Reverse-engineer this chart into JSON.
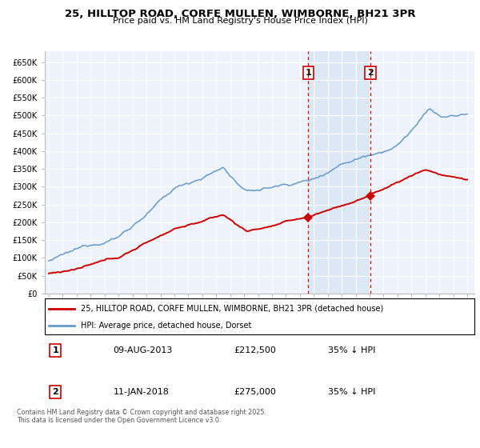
{
  "title": "25, HILLTOP ROAD, CORFE MULLEN, WIMBORNE, BH21 3PR",
  "subtitle": "Price paid vs. HM Land Registry's House Price Index (HPI)",
  "legend_label_red": "25, HILLTOP ROAD, CORFE MULLEN, WIMBORNE, BH21 3PR (detached house)",
  "legend_label_blue": "HPI: Average price, detached house, Dorset",
  "footnote": "Contains HM Land Registry data © Crown copyright and database right 2025.\nThis data is licensed under the Open Government Licence v3.0.",
  "red_color": "#cc0000",
  "blue_color": "#6699cc",
  "shade_color": "#dce8f5",
  "background_color": "#eef3fb",
  "ylim": [
    0,
    680000
  ],
  "xlim_start": 1994.7,
  "xlim_end": 2025.5,
  "transaction1": {
    "year": 2013.6,
    "price": 212500,
    "label": "1",
    "date": "09-AUG-2013",
    "note": "35% ↓ HPI"
  },
  "transaction2": {
    "year": 2018.05,
    "price": 275000,
    "label": "2",
    "date": "11-JAN-2018",
    "note": "35% ↓ HPI"
  },
  "yticks": [
    0,
    50000,
    100000,
    150000,
    200000,
    250000,
    300000,
    350000,
    400000,
    450000,
    500000,
    550000,
    600000,
    650000
  ],
  "ytick_labels": [
    "£0",
    "£50K",
    "£100K",
    "£150K",
    "£200K",
    "£250K",
    "£300K",
    "£350K",
    "£400K",
    "£450K",
    "£500K",
    "£550K",
    "£600K",
    "£650K"
  ]
}
